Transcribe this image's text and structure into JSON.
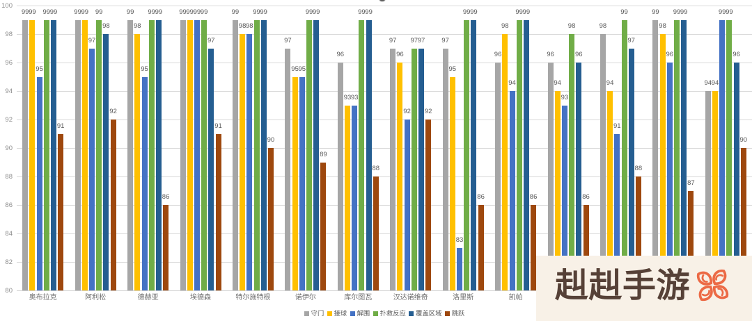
{
  "chart_data": {
    "type": "bar",
    "title": "",
    "categories": [
      "奥布拉克",
      "阿利松",
      "德赫亚",
      "埃德森",
      "特尔施特根",
      "诺伊尔",
      "库尔图瓦",
      "汉达诺维奇",
      "洛里斯",
      "凯帕",
      "",
      "",
      "",
      ""
    ],
    "series": [
      {
        "name": "守门",
        "color": "#a6a6a6",
        "values": [
          99,
          99,
          99,
          99,
          99,
          97,
          96,
          97,
          97,
          96,
          96,
          98,
          99,
          94
        ]
      },
      {
        "name": "接球",
        "color": "#ffc000",
        "values": [
          99,
          99,
          98,
          99,
          98,
          95,
          93,
          96,
          95,
          98,
          94,
          94,
          98,
          94
        ]
      },
      {
        "name": "解围",
        "color": "#4472c4",
        "values": [
          95,
          97,
          95,
          99,
          98,
          95,
          93,
          92,
          83,
          94,
          93,
          91,
          96,
          99
        ]
      },
      {
        "name": "扑救反应",
        "color": "#70ad47",
        "values": [
          99,
          99,
          99,
          99,
          99,
          99,
          99,
          97,
          99,
          99,
          98,
          99,
          99,
          99
        ]
      },
      {
        "name": "覆盖区域",
        "color": "#255e91",
        "values": [
          99,
          98,
          99,
          97,
          99,
          99,
          99,
          97,
          99,
          99,
          96,
          97,
          99,
          96
        ]
      },
      {
        "name": "跳跃",
        "color": "#9e480e",
        "values": [
          91,
          92,
          86,
          91,
          90,
          89,
          88,
          92,
          86,
          86,
          86,
          88,
          87,
          90
        ]
      }
    ],
    "ylim": [
      80,
      100
    ],
    "ytick_step": 2,
    "grid": true,
    "data_labels": true,
    "legend_position": "bottom"
  },
  "watermark": {
    "text": "赳赳手游",
    "icon": "four-petal-flower-icon",
    "background": "#f8f1e7",
    "text_color": "#564137",
    "icon_color": "#ec6a45"
  }
}
